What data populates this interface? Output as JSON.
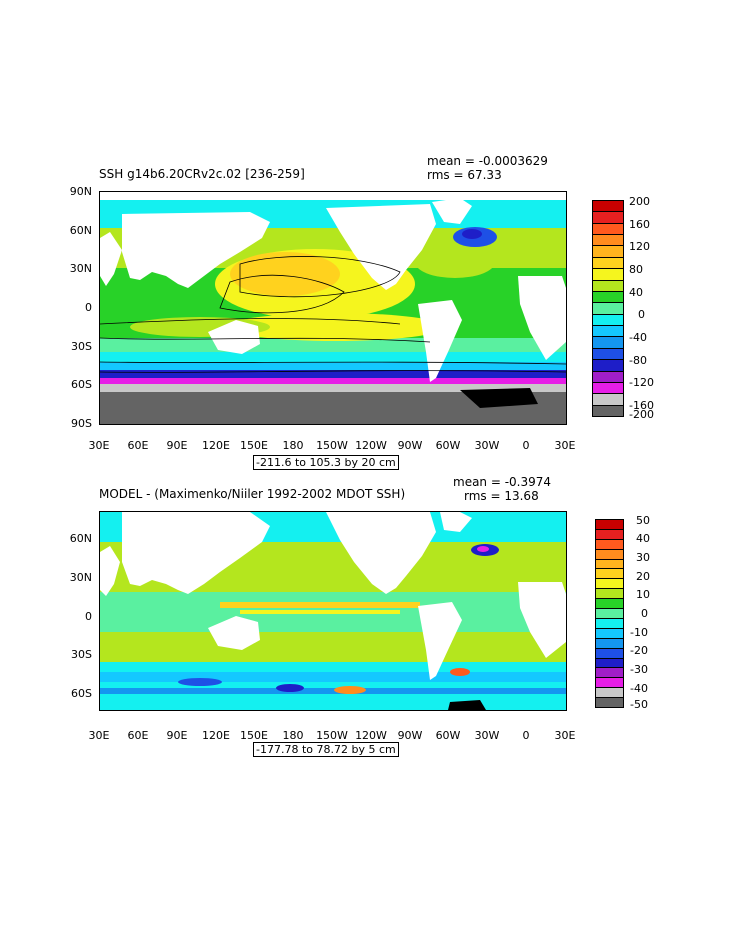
{
  "panel1": {
    "title": "SSH g14b6.20CRv2c.02 [236-259]",
    "mean_text": "mean = -0.0003629",
    "rms_text": "rms = 67.33",
    "range_text": "-211.6 to 105.3 by 20 cm",
    "lat_labels": [
      "90N",
      "60N",
      "30N",
      "0",
      "30S",
      "60S",
      "90S"
    ],
    "lon_labels": [
      "30E",
      "60E",
      "90E",
      "120E",
      "150E",
      "180",
      "150W",
      "120W",
      "90W",
      "60W",
      "30W",
      "0",
      "30E"
    ],
    "colorbar": {
      "labels": [
        "200",
        "160",
        "120",
        "80",
        "40",
        "0",
        "-40",
        "-80",
        "-120",
        "-160",
        "-200"
      ],
      "colors": [
        "#c80000",
        "#e62020",
        "#ff5a1e",
        "#ff8c1e",
        "#ffb41e",
        "#ffd21e",
        "#f5f51e",
        "#b4e61e",
        "#28d228",
        "#5af0a0",
        "#14f0f0",
        "#14c8ff",
        "#1496f0",
        "#1e50e6",
        "#1e1ec8",
        "#a01ec8",
        "#e61ee6",
        "#c8c8c8",
        "#646464"
      ]
    }
  },
  "panel2": {
    "title": "MODEL - (Maximenko/Niiler 1992-2002 MDOT SSH)",
    "mean_text": "mean = -0.3974",
    "rms_text": "rms = 13.68",
    "range_text": "-177.78 to 78.72 by 5 cm",
    "lat_labels": [
      "60N",
      "30N",
      "0",
      "30S",
      "60S"
    ],
    "lon_labels": [
      "30E",
      "60E",
      "90E",
      "120E",
      "150E",
      "180",
      "150W",
      "120W",
      "90W",
      "60W",
      "30W",
      "0",
      "30E"
    ],
    "colorbar": {
      "labels": [
        "50",
        "40",
        "30",
        "20",
        "10",
        "0",
        "-10",
        "-20",
        "-30",
        "-40",
        "-50"
      ],
      "colors": [
        "#c80000",
        "#e62020",
        "#ff5a1e",
        "#ff8c1e",
        "#ffb41e",
        "#ffd21e",
        "#f5f51e",
        "#b4e61e",
        "#28d228",
        "#5af0a0",
        "#14f0f0",
        "#14c8ff",
        "#1496f0",
        "#1e50e6",
        "#1e1ec8",
        "#a01ec8",
        "#e61ee6",
        "#c8c8c8",
        "#646464"
      ]
    }
  }
}
